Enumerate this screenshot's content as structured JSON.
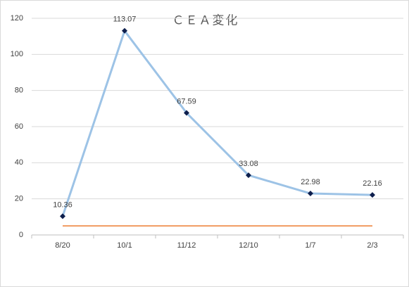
{
  "chart_data": {
    "type": "line",
    "title": "ＣＥＡ変化",
    "categories": [
      "8/20",
      "10/1",
      "11/12",
      "12/10",
      "1/7",
      "2/3"
    ],
    "series": [
      {
        "color": "#9dc3e6",
        "marker_color": "#0e1f4d",
        "values": [
          10.36,
          113.07,
          67.59,
          33.08,
          22.98,
          22.16
        ],
        "data_labels": true
      },
      {
        "color": "#ed7d31",
        "values": [
          5,
          5,
          5,
          5,
          5,
          5
        ]
      }
    ],
    "ylim": [
      0,
      120
    ],
    "yticks": [
      0,
      20,
      40,
      60,
      80,
      100,
      120
    ],
    "grid": true
  }
}
